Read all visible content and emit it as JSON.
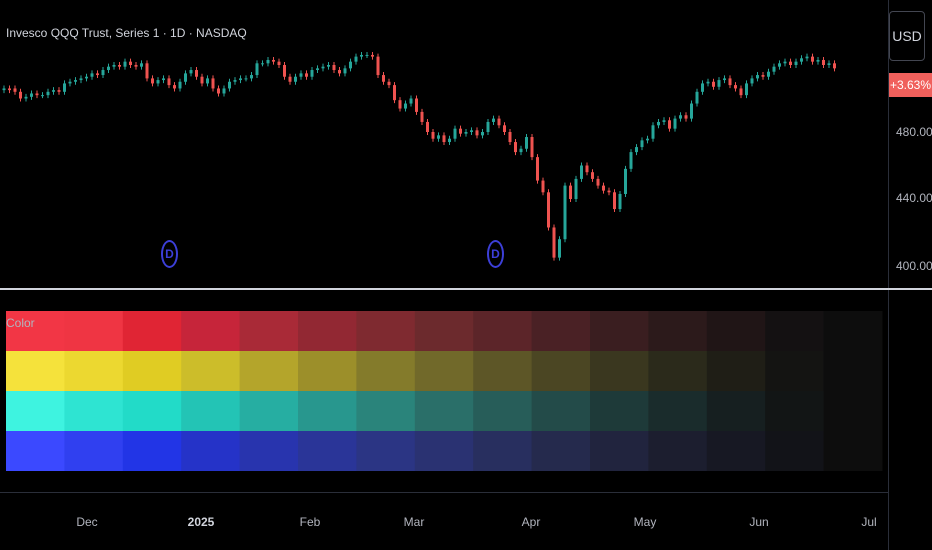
{
  "legend": {
    "title": "Invesco QQQ Trust, Series 1 · 1D · NASDAQ"
  },
  "price_axis": {
    "currency": "USD",
    "change_badge": "+3.63%",
    "ticks": [
      "480.00",
      "440.00",
      "400.00"
    ]
  },
  "time_axis": {
    "ticks": [
      {
        "label": "Dec",
        "bold": false
      },
      {
        "label": "2025",
        "bold": true
      },
      {
        "label": "Feb",
        "bold": false
      },
      {
        "label": "Mar",
        "bold": false
      },
      {
        "label": "Apr",
        "bold": false
      },
      {
        "label": "May",
        "bold": false
      },
      {
        "label": "Jun",
        "bold": false
      },
      {
        "label": "Jul",
        "bold": false
      }
    ]
  },
  "dividend_markers": [
    {
      "letter": "D"
    },
    {
      "letter": "D"
    }
  ],
  "indicator": {
    "label": "Color",
    "rows": [
      [
        "#f23645",
        "#ef3543",
        "#e02534",
        "#c6253a",
        "#a92a37",
        "#922833",
        "#7f2a30",
        "#6c2a2d",
        "#5c2529",
        "#4a2125",
        "#3a1e20",
        "#2c1a1b",
        "#201516",
        "#141112",
        "#0d0d0d"
      ],
      [
        "#f5e23b",
        "#ecd830",
        "#e0cc23",
        "#ccbd2a",
        "#b4a52b",
        "#9c8f2a",
        "#847b2b",
        "#71692a",
        "#5d5627",
        "#4b4623",
        "#3a371f",
        "#2b2a1b",
        "#1f1e16",
        "#141412",
        "#0d0d0d"
      ],
      [
        "#3ef3e0",
        "#2ee4d2",
        "#22dbc8",
        "#23c4b5",
        "#26aea2",
        "#28978e",
        "#2a847b",
        "#2a6f69",
        "#275d59",
        "#234b49",
        "#1e3a39",
        "#1a2c2c",
        "#161f20",
        "#121515",
        "#0d0d0d"
      ],
      [
        "#3b49ff",
        "#3040f0",
        "#2235e6",
        "#2533c8",
        "#2834ae",
        "#2a3598",
        "#2b3584",
        "#2a3272",
        "#282f5f",
        "#252a4d",
        "#21243e",
        "#1c1e2f",
        "#171823",
        "#121318",
        "#0d0d0d"
      ]
    ]
  },
  "chart_data": {
    "type": "candlestick",
    "symbol": "QQQ",
    "y_ticks": [
      480,
      440,
      400
    ],
    "candles": [
      {
        "o": 505,
        "c": 506
      },
      {
        "o": 506,
        "c": 505
      },
      {
        "o": 506,
        "c": 504
      },
      {
        "o": 504,
        "c": 500
      },
      {
        "o": 500,
        "c": 501
      },
      {
        "o": 501,
        "c": 503
      },
      {
        "o": 503,
        "c": 502
      },
      {
        "o": 502,
        "c": 502
      },
      {
        "o": 502,
        "c": 504
      },
      {
        "o": 504,
        "c": 505
      },
      {
        "o": 505,
        "c": 504
      },
      {
        "o": 504,
        "c": 509
      },
      {
        "o": 509,
        "c": 510
      },
      {
        "o": 510,
        "c": 511
      },
      {
        "o": 511,
        "c": 512
      },
      {
        "o": 512,
        "c": 513
      },
      {
        "o": 513,
        "c": 515
      },
      {
        "o": 515,
        "c": 514
      },
      {
        "o": 514,
        "c": 517
      },
      {
        "o": 517,
        "c": 519
      },
      {
        "o": 519,
        "c": 520
      },
      {
        "o": 520,
        "c": 519
      },
      {
        "o": 519,
        "c": 522
      },
      {
        "o": 522,
        "c": 520
      },
      {
        "o": 520,
        "c": 519
      },
      {
        "o": 519,
        "c": 521
      },
      {
        "o": 521,
        "c": 512
      },
      {
        "o": 512,
        "c": 509
      },
      {
        "o": 509,
        "c": 511
      },
      {
        "o": 511,
        "c": 512
      },
      {
        "o": 512,
        "c": 508
      },
      {
        "o": 508,
        "c": 506
      },
      {
        "o": 506,
        "c": 510
      },
      {
        "o": 510,
        "c": 515
      },
      {
        "o": 515,
        "c": 517
      },
      {
        "o": 517,
        "c": 513
      },
      {
        "o": 513,
        "c": 509
      },
      {
        "o": 509,
        "c": 512
      },
      {
        "o": 512,
        "c": 506
      },
      {
        "o": 506,
        "c": 503
      },
      {
        "o": 503,
        "c": 506
      },
      {
        "o": 506,
        "c": 510
      },
      {
        "o": 510,
        "c": 511
      },
      {
        "o": 511,
        "c": 512
      },
      {
        "o": 512,
        "c": 512
      },
      {
        "o": 512,
        "c": 514
      },
      {
        "o": 514,
        "c": 521
      },
      {
        "o": 521,
        "c": 521
      },
      {
        "o": 521,
        "c": 523
      },
      {
        "o": 523,
        "c": 522
      },
      {
        "o": 522,
        "c": 520
      },
      {
        "o": 520,
        "c": 513
      },
      {
        "o": 513,
        "c": 510
      },
      {
        "o": 510,
        "c": 513
      },
      {
        "o": 513,
        "c": 515
      },
      {
        "o": 515,
        "c": 513
      },
      {
        "o": 513,
        "c": 517
      },
      {
        "o": 517,
        "c": 518
      },
      {
        "o": 518,
        "c": 519
      },
      {
        "o": 519,
        "c": 520
      },
      {
        "o": 520,
        "c": 517
      },
      {
        "o": 517,
        "c": 515
      },
      {
        "o": 515,
        "c": 518
      },
      {
        "o": 518,
        "c": 522
      },
      {
        "o": 522,
        "c": 525
      },
      {
        "o": 525,
        "c": 526
      },
      {
        "o": 526,
        "c": 526
      },
      {
        "o": 526,
        "c": 525
      },
      {
        "o": 525,
        "c": 514
      },
      {
        "o": 514,
        "c": 510
      },
      {
        "o": 510,
        "c": 508
      },
      {
        "o": 508,
        "c": 499
      },
      {
        "o": 499,
        "c": 494
      },
      {
        "o": 494,
        "c": 497
      },
      {
        "o": 497,
        "c": 500
      },
      {
        "o": 500,
        "c": 492
      },
      {
        "o": 492,
        "c": 486
      },
      {
        "o": 486,
        "c": 480
      },
      {
        "o": 480,
        "c": 476
      },
      {
        "o": 476,
        "c": 478
      },
      {
        "o": 478,
        "c": 474
      },
      {
        "o": 474,
        "c": 476
      },
      {
        "o": 476,
        "c": 482
      },
      {
        "o": 482,
        "c": 479
      },
      {
        "o": 479,
        "c": 480
      },
      {
        "o": 480,
        "c": 481
      },
      {
        "o": 481,
        "c": 478
      },
      {
        "o": 478,
        "c": 480
      },
      {
        "o": 480,
        "c": 486
      },
      {
        "o": 486,
        "c": 488
      },
      {
        "o": 488,
        "c": 484
      },
      {
        "o": 484,
        "c": 480
      },
      {
        "o": 480,
        "c": 474
      },
      {
        "o": 474,
        "c": 468
      },
      {
        "o": 468,
        "c": 470
      },
      {
        "o": 470,
        "c": 477
      },
      {
        "o": 477,
        "c": 465
      },
      {
        "o": 465,
        "c": 451
      },
      {
        "o": 451,
        "c": 444
      },
      {
        "o": 444,
        "c": 423
      },
      {
        "o": 423,
        "c": 405
      },
      {
        "o": 405,
        "c": 416
      },
      {
        "o": 416,
        "c": 448
      },
      {
        "o": 448,
        "c": 440
      },
      {
        "o": 440,
        "c": 452
      },
      {
        "o": 452,
        "c": 460
      },
      {
        "o": 460,
        "c": 456
      },
      {
        "o": 456,
        "c": 452
      },
      {
        "o": 452,
        "c": 448
      },
      {
        "o": 448,
        "c": 445
      },
      {
        "o": 445,
        "c": 444
      },
      {
        "o": 444,
        "c": 434
      },
      {
        "o": 434,
        "c": 443
      },
      {
        "o": 443,
        "c": 458
      },
      {
        "o": 458,
        "c": 468
      },
      {
        "o": 468,
        "c": 471
      },
      {
        "o": 471,
        "c": 475
      },
      {
        "o": 475,
        "c": 476
      },
      {
        "o": 476,
        "c": 484
      },
      {
        "o": 484,
        "c": 486
      },
      {
        "o": 486,
        "c": 487
      },
      {
        "o": 487,
        "c": 482
      },
      {
        "o": 482,
        "c": 488
      },
      {
        "o": 488,
        "c": 490
      },
      {
        "o": 490,
        "c": 488
      },
      {
        "o": 488,
        "c": 497
      },
      {
        "o": 497,
        "c": 504
      },
      {
        "o": 504,
        "c": 509
      },
      {
        "o": 509,
        "c": 510
      },
      {
        "o": 510,
        "c": 507
      },
      {
        "o": 507,
        "c": 511
      },
      {
        "o": 511,
        "c": 512
      },
      {
        "o": 512,
        "c": 508
      },
      {
        "o": 508,
        "c": 506
      },
      {
        "o": 506,
        "c": 502
      },
      {
        "o": 502,
        "c": 509
      },
      {
        "o": 509,
        "c": 512
      },
      {
        "o": 512,
        "c": 514
      },
      {
        "o": 514,
        "c": 513
      },
      {
        "o": 513,
        "c": 516
      },
      {
        "o": 516,
        "c": 519
      },
      {
        "o": 519,
        "c": 521
      },
      {
        "o": 521,
        "c": 522
      },
      {
        "o": 522,
        "c": 520
      },
      {
        "o": 520,
        "c": 522
      },
      {
        "o": 522,
        "c": 524
      },
      {
        "o": 524,
        "c": 525
      },
      {
        "o": 525,
        "c": 522
      },
      {
        "o": 522,
        "c": 523
      },
      {
        "o": 523,
        "c": 520
      },
      {
        "o": 520,
        "c": 521
      },
      {
        "o": 521,
        "c": 518
      }
    ],
    "up_color": "#26a69a",
    "down_color": "#ef5350"
  }
}
